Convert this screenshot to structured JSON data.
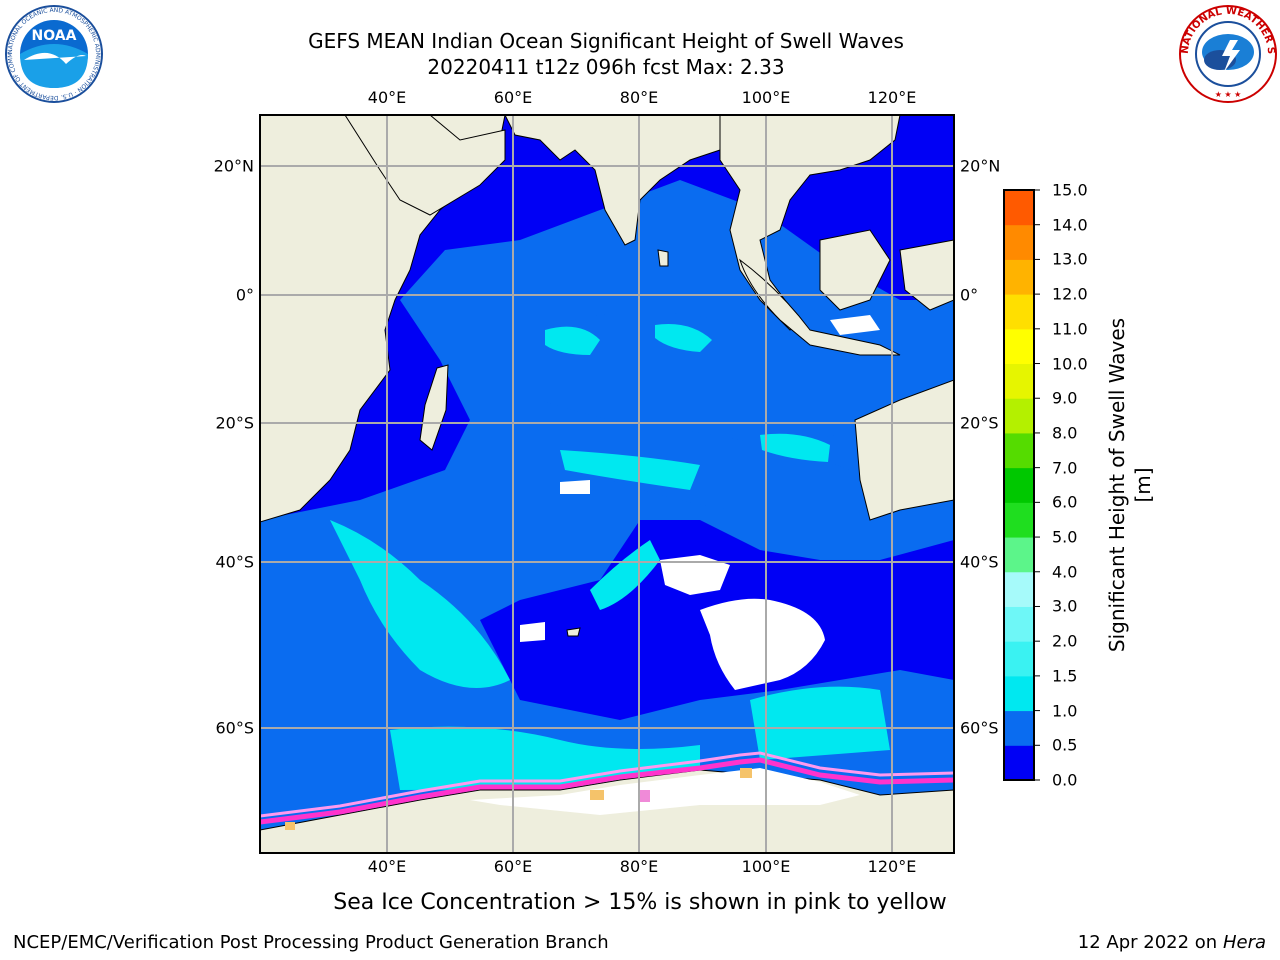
{
  "title": {
    "line1": "GEFS MEAN Indian Ocean Significant Height of Swell Waves",
    "line2": "20220411 t12z 096h fcst   Max: 2.33"
  },
  "map": {
    "lon_labels": [
      "40°E",
      "60°E",
      "80°E",
      "100°E",
      "120°E"
    ],
    "lat_labels": [
      "20°N",
      "0°",
      "20°S",
      "40°S",
      "60°S"
    ]
  },
  "colorbar": {
    "title": "Significant Height of Swell Waves [m]",
    "levels": [
      "0.0",
      "0.5",
      "1.0",
      "1.5",
      "2.0",
      "3.0",
      "4.0",
      "5.0",
      "6.0",
      "7.0",
      "8.0",
      "9.0",
      "10.0",
      "11.0",
      "12.0",
      "13.0",
      "14.0",
      "15.0"
    ],
    "colors": [
      "#0000f5",
      "#0a6cf0",
      "#00e8f0",
      "#3af2f2",
      "#6ef7f7",
      "#a6fafa",
      "#5cf58a",
      "#1fde1f",
      "#00c800",
      "#55dc00",
      "#b4f000",
      "#e6f500",
      "#ffff00",
      "#ffdf00",
      "#ffb300",
      "#ff8a00",
      "#ff5a00",
      "#ff2a00",
      "#ff0000"
    ]
  },
  "note": "Sea Ice Concentration > 15% is shown in pink to yellow",
  "footer": {
    "left": "NCEP/EMC/Verification Post Processing Product Generation Branch",
    "date": "12 Apr 2022 on",
    "machine": "Hera"
  },
  "logos": {
    "noaa_text": "NOAA",
    "noaa_ring": "NATIONAL OCEANIC AND ATMOSPHERIC ADMINISTRATION · U.S. DEPARTMENT OF COMMERCE",
    "nws_ring": "NATIONAL WEATHER SERVICE"
  },
  "style": {
    "land": "#eeeedd",
    "ocean_low": "#0000f5",
    "ocean_mid": "#0a6cf0",
    "ocean_high": "#00e8f0",
    "grid": "#aaaaaa"
  }
}
